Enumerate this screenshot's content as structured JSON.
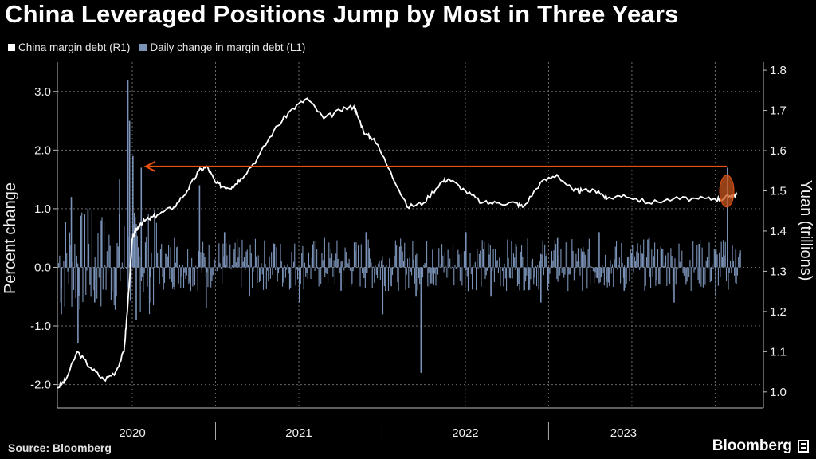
{
  "title": "China Leveraged Positions Jump by Most in Three Years",
  "legend": [
    {
      "label": "China margin debt (R1)",
      "color": "#ffffff"
    },
    {
      "label": "Daily change in margin debt (L1)",
      "color": "#7b93b8"
    }
  ],
  "source": "Source: Bloomberg",
  "brand": "Bloomberg",
  "colors": {
    "background": "#000000",
    "line": "#ffffff",
    "bars": "#7b93b8",
    "arrow": "#e8500f",
    "highlight": "#c8561c",
    "grid": "#6a6a6a"
  },
  "chart_data": {
    "type": "line",
    "left_axis": {
      "label": "Percent change",
      "range": [
        -2.4,
        3.5
      ],
      "ticks": [
        "3.0",
        "2.0",
        "1.0",
        "0.0",
        "-1.0",
        "-2.0"
      ],
      "tick_values": [
        3.0,
        2.0,
        1.0,
        0.0,
        -1.0,
        -2.0
      ]
    },
    "right_axis": {
      "label": "Yuan (trillions)",
      "range": [
        0.96,
        1.82
      ],
      "ticks": [
        "1.8",
        "1.7",
        "1.6",
        "1.5",
        "1.4",
        "1.3",
        "1.2",
        "1.1",
        "1.0"
      ],
      "tick_values": [
        1.8,
        1.7,
        1.6,
        1.5,
        1.4,
        1.3,
        1.2,
        1.1,
        1.0
      ]
    },
    "x_axis": {
      "range": [
        2019.6,
        2023.84
      ],
      "labels": [
        "2020",
        "2021",
        "2022",
        "2023"
      ],
      "label_positions": [
        2020.05,
        2021.05,
        2022.05,
        2023.0
      ],
      "separators": [
        2020.55,
        2021.55,
        2022.55
      ]
    },
    "grid": true,
    "series": [
      {
        "name": "China margin debt (R1)",
        "axis": "right",
        "x": [
          2019.6,
          2019.65,
          2019.72,
          2019.8,
          2019.88,
          2019.95,
          2020.0,
          2020.02,
          2020.05,
          2020.07,
          2020.1,
          2020.15,
          2020.2,
          2020.3,
          2020.38,
          2020.45,
          2020.5,
          2020.55,
          2020.6,
          2020.65,
          2020.7,
          2020.8,
          2020.9,
          2021.0,
          2021.1,
          2021.2,
          2021.3,
          2021.38,
          2021.4,
          2021.45,
          2021.5,
          2021.6,
          2021.7,
          2021.8,
          2021.9,
          2021.95,
          2022.05,
          2022.15,
          2022.25,
          2022.35,
          2022.4,
          2022.5,
          2022.6,
          2022.7,
          2022.75,
          2022.85,
          2022.9,
          2023.0,
          2023.15,
          2023.3,
          2023.45,
          2023.55,
          2023.6,
          2023.65,
          2023.68
        ],
        "values": [
          1.01,
          1.03,
          1.1,
          1.06,
          1.03,
          1.05,
          1.1,
          1.2,
          1.38,
          1.4,
          1.42,
          1.43,
          1.44,
          1.46,
          1.5,
          1.55,
          1.56,
          1.52,
          1.51,
          1.51,
          1.53,
          1.58,
          1.65,
          1.7,
          1.73,
          1.68,
          1.7,
          1.71,
          1.69,
          1.64,
          1.63,
          1.55,
          1.46,
          1.47,
          1.52,
          1.53,
          1.5,
          1.47,
          1.47,
          1.47,
          1.46,
          1.52,
          1.54,
          1.5,
          1.5,
          1.5,
          1.48,
          1.49,
          1.47,
          1.48,
          1.48,
          1.48,
          1.48,
          1.49,
          1.49
        ]
      },
      {
        "name": "Daily change in margin debt (L1)",
        "axis": "left",
        "x": [
          2019.62,
          2019.68,
          2019.72,
          2019.78,
          2019.82,
          2019.86,
          2019.95,
          2019.97,
          2020.02,
          2020.03,
          2020.05,
          2020.07,
          2020.1,
          2020.15,
          2020.3,
          2020.45,
          2020.49,
          2020.6,
          2020.75,
          2020.9,
          2021.05,
          2021.2,
          2021.3,
          2021.45,
          2021.55,
          2021.75,
          2021.78,
          2021.85,
          2022.05,
          2022.2,
          2022.35,
          2022.5,
          2022.6,
          2022.75,
          2022.85,
          2023.0,
          2023.15,
          2023.3,
          2023.45,
          2023.55,
          2023.62,
          2023.67
        ],
        "values": [
          -0.8,
          1.2,
          -1.3,
          1.0,
          -0.6,
          0.8,
          -0.5,
          1.5,
          3.2,
          2.5,
          1.9,
          -0.9,
          1.7,
          -0.6,
          0.5,
          1.4,
          -0.7,
          0.6,
          -0.5,
          0.4,
          -0.6,
          0.5,
          -0.4,
          0.6,
          -0.8,
          -0.5,
          -1.8,
          0.3,
          0.6,
          -0.5,
          0.4,
          -0.6,
          0.5,
          -0.4,
          0.6,
          -0.4,
          0.5,
          -0.6,
          0.4,
          -0.5,
          1.7,
          0.3
        ]
      }
    ],
    "annotations": [
      {
        "type": "arrow",
        "from_x": 2023.62,
        "to_x": 2020.13,
        "y_left": 1.72
      },
      {
        "type": "highlight-ellipse",
        "x": 2023.62,
        "y_left": 1.3
      }
    ]
  }
}
